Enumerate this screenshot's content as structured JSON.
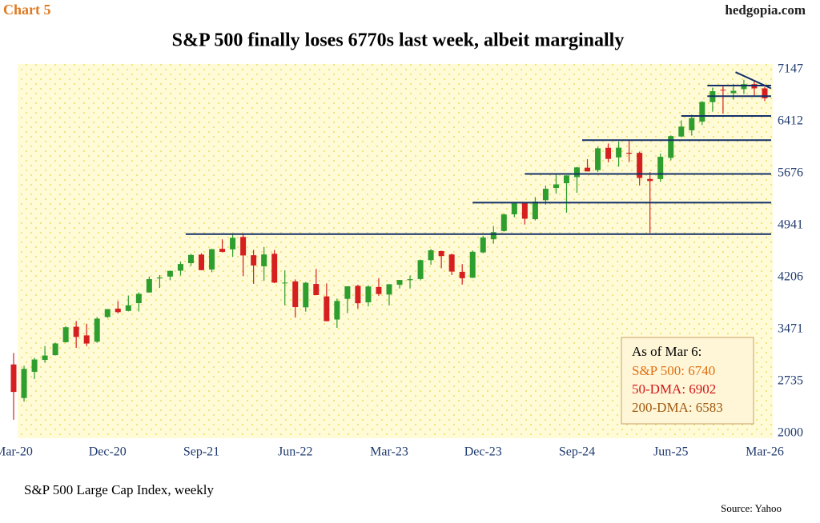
{
  "chart_data": {
    "type": "candlestick",
    "label": "Chart 5",
    "brand": "hedgopia.com",
    "title": "S&P 500 finally loses 6770s last week, albeit marginally",
    "subtitle": "S&P 500 Large Cap Index, weekly",
    "source": "Source: Yahoo",
    "categories": [
      "Mar-20",
      null,
      null,
      null,
      null,
      null,
      null,
      null,
      null,
      "Dec-20",
      null,
      null,
      null,
      null,
      null,
      null,
      null,
      null,
      "Sep-21",
      null,
      null,
      null,
      null,
      null,
      null,
      null,
      null,
      "Jun-22",
      null,
      null,
      null,
      null,
      null,
      null,
      null,
      null,
      "Mar-23",
      null,
      null,
      null,
      null,
      null,
      null,
      null,
      null,
      "Dec-23",
      null,
      null,
      null,
      null,
      null,
      null,
      null,
      null,
      "Sep-24",
      null,
      null,
      null,
      null,
      null,
      null,
      null,
      null,
      "Jun-25",
      null,
      null,
      null,
      null,
      null,
      null,
      null,
      null,
      "Mar-26"
    ],
    "open": [
      2974,
      2499,
      2870,
      3038,
      3105,
      3289,
      3508,
      3385,
      3296,
      3645,
      3764,
      3731,
      3842,
      3992,
      4191,
      4217,
      4300,
      4407,
      4528,
      4317,
      4610,
      4602,
      4778,
      4519,
      4363,
      4540,
      4131,
      4149,
      3782,
      4113,
      3937,
      3610,
      3902,
      4087,
      3853,
      4070,
      3963,
      4102,
      4166,
      4183,
      4450,
      4578,
      4530,
      4284,
      4201,
      4559,
      4745,
      4862,
      5098,
      5257,
      5029,
      5298,
      5471,
      5538,
      5624,
      5758,
      5723,
      6040,
      5903,
      5969,
      5968,
      5598,
      5597,
      5897,
      6199,
      6287,
      6409,
      6685,
      6860,
      6812,
      6870,
      6940,
      6880
    ],
    "high": [
      3136,
      2954,
      3068,
      3233,
      3280,
      3514,
      3588,
      3550,
      3645,
      3760,
      3870,
      3950,
      3994,
      4218,
      4238,
      4302,
      4429,
      4538,
      4546,
      4609,
      4744,
      4808,
      4819,
      4595,
      4637,
      4594,
      4307,
      4177,
      4141,
      4325,
      4120,
      3906,
      4080,
      4101,
      4095,
      4195,
      4110,
      4170,
      4232,
      4458,
      4607,
      4584,
      4541,
      4393,
      4587,
      4794,
      4932,
      5111,
      5265,
      5264,
      5342,
      5505,
      5670,
      5651,
      5768,
      5878,
      6053,
      6100,
      6128,
      6147,
      5986,
      5696,
      5958,
      6215,
      6427,
      6508,
      6699,
      6890,
      6920,
      6945,
      7002,
      6990,
      6900
    ],
    "low": [
      2192,
      2447,
      2767,
      2999,
      3101,
      3284,
      3209,
      3234,
      3279,
      3633,
      3694,
      3725,
      3723,
      3992,
      4056,
      4165,
      4233,
      4368,
      4306,
      4279,
      4560,
      4495,
      4223,
      4115,
      4157,
      4124,
      3811,
      3637,
      3721,
      3954,
      3585,
      3492,
      3699,
      3764,
      3795,
      3943,
      3809,
      4049,
      4048,
      4163,
      4385,
      4335,
      4238,
      4104,
      4197,
      4547,
      4683,
      4853,
      5057,
      4954,
      5012,
      5234,
      5390,
      5120,
      5402,
      5705,
      5696,
      5833,
      5773,
      5837,
      5505,
      4835,
      5557,
      5862,
      6188,
      6212,
      6360,
      6550,
      6521,
      6720,
      6800,
      6770,
      6700
    ],
    "close": [
      2585,
      2912,
      3044,
      3100,
      3271,
      3500,
      3363,
      3270,
      3622,
      3756,
      3714,
      3811,
      3973,
      4181,
      4204,
      4298,
      4395,
      4523,
      4308,
      4605,
      4567,
      4766,
      4516,
      4374,
      4530,
      4132,
      4132,
      3785,
      4130,
      3955,
      3586,
      3872,
      4080,
      3840,
      4077,
      3970,
      4109,
      4169,
      4180,
      4450,
      4589,
      4508,
      4288,
      4194,
      4568,
      4770,
      4846,
      5096,
      5254,
      5036,
      5278,
      5460,
      5522,
      5648,
      5762,
      5705,
      6032,
      5882,
      6041,
      5955,
      5612,
      5569,
      5912,
      6205,
      6339,
      6460,
      6688,
      6840,
      6849,
      6845,
      6940,
      6880,
      6740
    ],
    "up_color": "#2e9e2e",
    "down_color": "#d62020",
    "ylim": [
      1930,
      7225
    ],
    "yticks": [
      2000,
      2735,
      3471,
      4206,
      4941,
      5676,
      6412,
      7147
    ],
    "levels": [
      {
        "value": 4818,
        "from": 16.5
      },
      {
        "value": 5264,
        "from": 44
      },
      {
        "value": 5670,
        "from": 49
      },
      {
        "value": 6147,
        "from": 54.5
      },
      {
        "value": 6490,
        "from": 64
      },
      {
        "value": 6770,
        "from": 66.5
      },
      {
        "value": 6920,
        "from": 66.5
      }
    ],
    "trendline": {
      "x": [
        69.2,
        72.6
      ],
      "values": [
        7110,
        6880
      ]
    },
    "level_color": "#13306a",
    "info_box": {
      "title": "As of Mar 6:",
      "lines": [
        {
          "text": "S&P 500: 6740",
          "color": "#e07010"
        },
        {
          "text": "50-DMA: 6902",
          "color": "#d01818"
        },
        {
          "text": "200-DMA: 6583",
          "color": "#a05a10"
        }
      ]
    }
  }
}
